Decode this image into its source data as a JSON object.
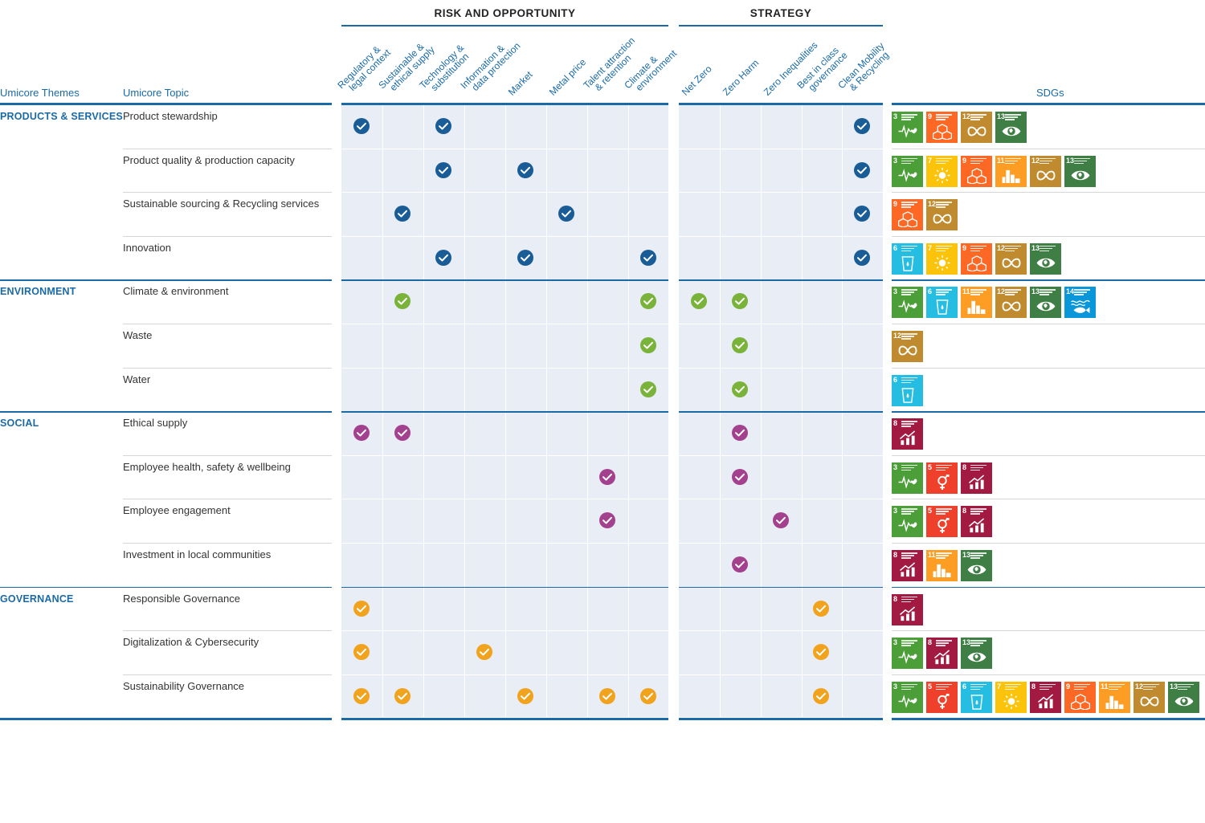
{
  "groups": {
    "risk": "RISK AND OPPORTUNITY",
    "strategy": "STRATEGY"
  },
  "headers": {
    "themes": "Umicore Themes",
    "topic": "Umicore Topic",
    "sdgs": "SDGs"
  },
  "columns": [
    {
      "l1": "Regulatory &",
      "l2": "legal context"
    },
    {
      "l1": "Sustainable &",
      "l2": "ethical supply"
    },
    {
      "l1": "Technology &",
      "l2": "substitution"
    },
    {
      "l1": "Information &",
      "l2": "data protection"
    },
    {
      "l1": "Market",
      "l2": ""
    },
    {
      "l1": "Metal price",
      "l2": ""
    },
    {
      "l1": "Talent attraction",
      "l2": "& retention"
    },
    {
      "l1": "Climate &",
      "l2": "environment"
    },
    {
      "l1": "Net Zero",
      "l2": ""
    },
    {
      "l1": "Zero Harm",
      "l2": ""
    },
    {
      "l1": "Zero Inequalities",
      "l2": ""
    },
    {
      "l1": "Best in class",
      "l2": "governance"
    },
    {
      "l1": "Clean Mobility",
      "l2": "& Recycling"
    }
  ],
  "themes": [
    {
      "name": "PRODUCTS & SERVICES",
      "color": "#1a5c96",
      "topics": [
        {
          "name": "Product stewardship",
          "checks": [
            0,
            2,
            12
          ],
          "sdgs": [
            3,
            9,
            12,
            13
          ]
        },
        {
          "name": "Product quality & production capacity",
          "checks": [
            2,
            4,
            12
          ],
          "sdgs": [
            3,
            7,
            9,
            11,
            12,
            13
          ]
        },
        {
          "name": "Sustainable sourcing & Recycling services",
          "checks": [
            1,
            5,
            12
          ],
          "sdgs": [
            9,
            12
          ]
        },
        {
          "name": "Innovation",
          "checks": [
            2,
            4,
            7,
            12
          ],
          "sdgs": [
            6,
            7,
            9,
            12,
            13
          ]
        }
      ]
    },
    {
      "name": "ENVIRONMENT",
      "color": "#7ab33a",
      "topics": [
        {
          "name": "Climate & environment",
          "checks": [
            1,
            7,
            8,
            9
          ],
          "sdgs": [
            3,
            6,
            11,
            12,
            13,
            14
          ]
        },
        {
          "name": "Waste",
          "checks": [
            7,
            9
          ],
          "sdgs": [
            12
          ]
        },
        {
          "name": "Water",
          "checks": [
            7,
            9
          ],
          "sdgs": [
            6
          ]
        }
      ]
    },
    {
      "name": "SOCIAL",
      "color": "#a3418e",
      "topics": [
        {
          "name": "Ethical supply",
          "checks": [
            0,
            1,
            9
          ],
          "sdgs": [
            8
          ]
        },
        {
          "name": "Employee health, safety & wellbeing",
          "checks": [
            6,
            9
          ],
          "sdgs": [
            3,
            5,
            8
          ]
        },
        {
          "name": "Employee engagement",
          "checks": [
            6,
            10
          ],
          "sdgs": [
            3,
            5,
            8
          ]
        },
        {
          "name": "Investment in local communities",
          "checks": [
            9
          ],
          "sdgs": [
            8,
            11,
            13
          ]
        }
      ]
    },
    {
      "name": "GOVERNANCE",
      "color": "#f1a31e",
      "topics": [
        {
          "name": "Responsible Governance",
          "checks": [
            0,
            11
          ],
          "sdgs": [
            8
          ]
        },
        {
          "name": "Digitalization & Cybersecurity",
          "checks": [
            0,
            3,
            11
          ],
          "sdgs": [
            3,
            8,
            13
          ]
        },
        {
          "name": "Sustainability Governance",
          "checks": [
            0,
            1,
            4,
            6,
            7,
            11
          ],
          "sdgs": [
            3,
            5,
            6,
            7,
            8,
            9,
            11,
            12,
            13
          ]
        }
      ]
    }
  ],
  "sdg_colors": {
    "3": "#4c9f38",
    "5": "#ef402b",
    "6": "#26bde2",
    "7": "#fcc30b",
    "8": "#a21942",
    "9": "#fd6925",
    "11": "#fd9d24",
    "12": "#bf8b2e",
    "13": "#3f7e44",
    "14": "#0a97d9"
  }
}
